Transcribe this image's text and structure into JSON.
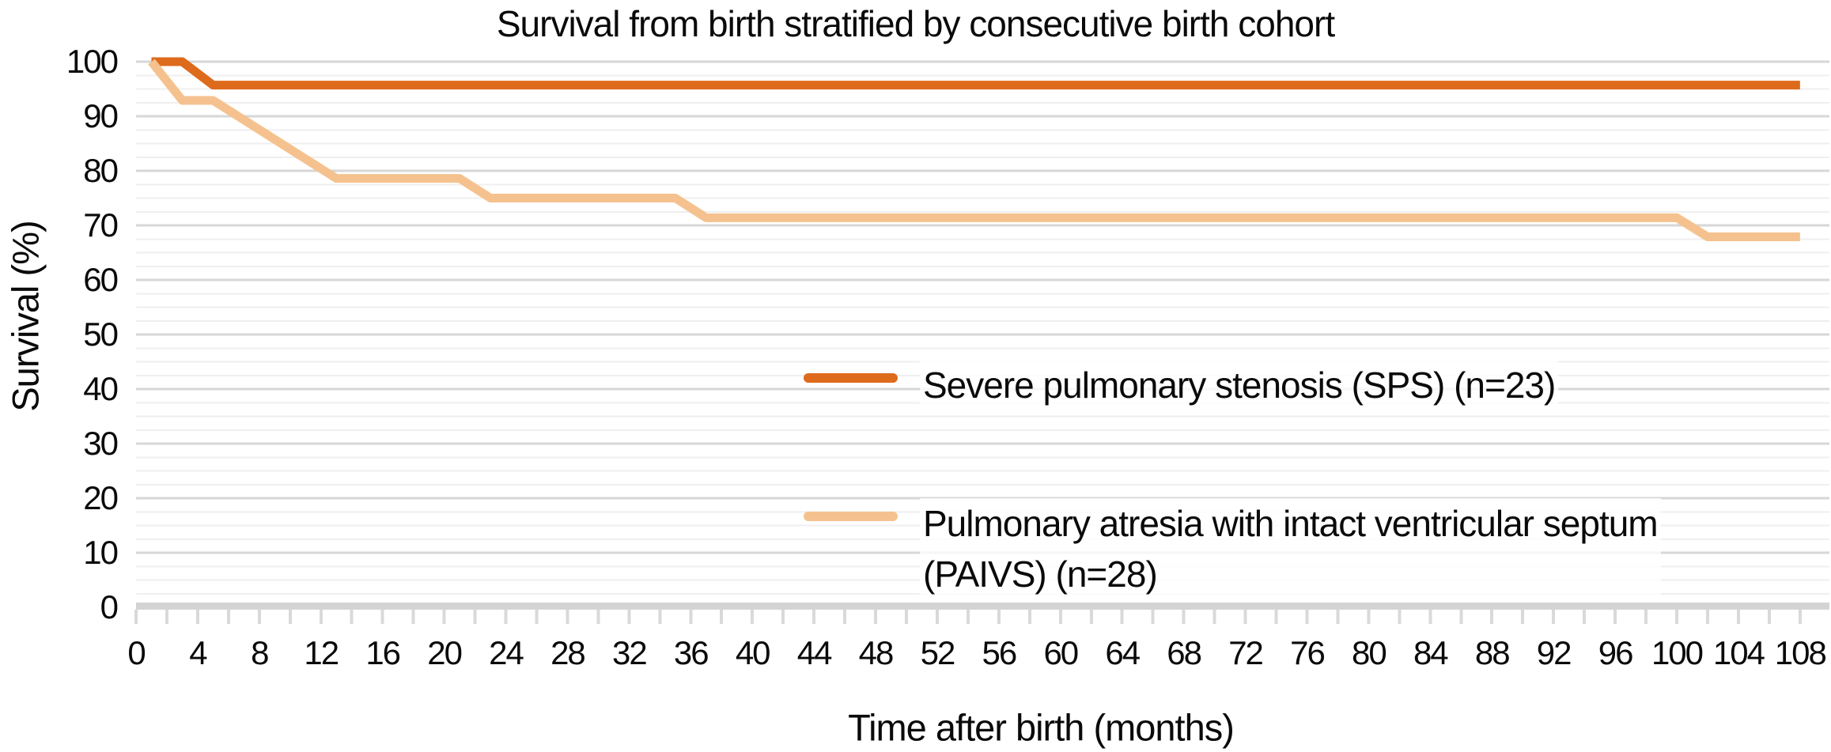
{
  "title": "Survival from birth stratified by consecutive birth cohort",
  "axes": {
    "x_title": "Time after birth (months)",
    "y_title": "Survival (%)"
  },
  "legend": {
    "items": [
      {
        "id": "sps",
        "label": "Severe pulmonary stenosis (SPS) (n=23)",
        "color": "#de6a1c"
      },
      {
        "id": "paivs",
        "label": "Pulmonary atresia with intact ventricular septum\n(PAIVS) (n=28)",
        "color": "#f5c28f"
      }
    ]
  },
  "chart_data": {
    "type": "line",
    "title": "Survival from birth stratified by consecutive birth cohort",
    "xlabel": "Time after birth (months)",
    "ylabel": "Survival (%)",
    "xlim": [
      0,
      110
    ],
    "ylim": [
      0,
      100
    ],
    "x_tick_labels": [
      0,
      4,
      8,
      12,
      16,
      20,
      24,
      28,
      32,
      36,
      40,
      44,
      48,
      52,
      56,
      60,
      64,
      68,
      72,
      76,
      80,
      84,
      88,
      92,
      96,
      100,
      104,
      108
    ],
    "x_minor_tick_step": 2,
    "y_tick_labels": [
      100,
      90,
      80,
      70,
      60,
      50,
      40,
      30,
      20,
      10,
      0
    ],
    "y_minor_grid_step": 2.5,
    "grid": "horizontal only: faint minor lines every 2.5, darker major lines every 10",
    "legend_position": "inside middle-right",
    "series": [
      {
        "id": "sps",
        "name": "Severe pulmonary stenosis (SPS) (n=23)",
        "n": 23,
        "color": "#de6a1c",
        "points_month_percent": [
          [
            1,
            100
          ],
          [
            3,
            100
          ],
          [
            5,
            95.7
          ],
          [
            108,
            95.7
          ]
        ]
      },
      {
        "id": "paivs",
        "name": "Pulmonary atresia with intact ventricular septum (PAIVS) (n=28)",
        "n": 28,
        "color": "#f5c28f",
        "points_month_percent": [
          [
            1,
            100
          ],
          [
            3,
            92.9
          ],
          [
            5,
            92.9
          ],
          [
            13,
            78.6
          ],
          [
            21,
            78.6
          ],
          [
            23,
            75
          ],
          [
            35,
            75
          ],
          [
            37,
            71.4
          ],
          [
            100,
            71.4
          ],
          [
            102,
            67.9
          ],
          [
            108,
            67.9
          ]
        ]
      }
    ],
    "style_colors": {
      "major_grid": "#d7d7d7",
      "minor_grid": "#efefef",
      "axis_band": "#d4d4d4",
      "tick_mark": "#d9d9d9",
      "text": "#0a0a0a"
    }
  }
}
